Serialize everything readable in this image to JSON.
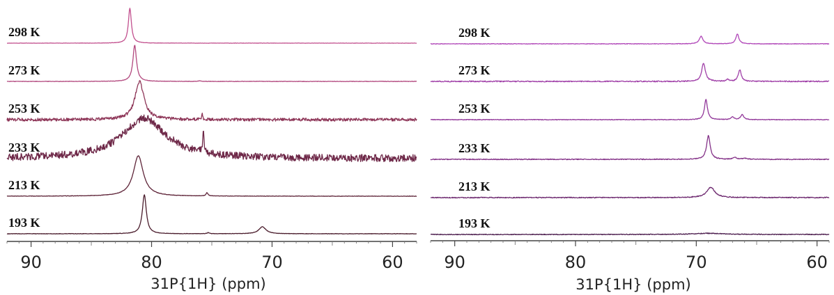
{
  "chart_data": [
    {
      "type": "line",
      "subtype": "stacked NMR spectra",
      "xlabel": "31P{1H} (ppm)",
      "xlim": [
        92,
        58
      ],
      "x_reversed": true,
      "xticks": [
        90,
        80,
        70,
        60
      ],
      "series": [
        {
          "name": "298 K",
          "color": "#c2508e",
          "peaks": [
            {
              "ppm": 81.8,
              "height": 1.0,
              "width": 0.15
            }
          ],
          "noise": 0.004
        },
        {
          "name": "273 K",
          "color": "#b2487e",
          "peaks": [
            {
              "ppm": 81.4,
              "height": 1.0,
              "width": 0.18
            },
            {
              "ppm": 76.0,
              "height": 0.02,
              "width": 0.1
            }
          ],
          "noise": 0.006
        },
        {
          "name": "253 K",
          "color": "#8e3658",
          "peaks": [
            {
              "ppm": 81.0,
              "height": 1.0,
              "width": 0.45
            },
            {
              "ppm": 75.8,
              "height": 0.15,
              "width": 0.05
            }
          ],
          "noise": 0.04
        },
        {
          "name": "233 K",
          "color": "#6e2848",
          "peaks": [
            {
              "ppm": 80.6,
              "height": 1.0,
              "width": 2.2
            },
            {
              "ppm": 75.7,
              "height": 0.55,
              "width": 0.06
            }
          ],
          "noise": 0.09
        },
        {
          "name": "213 K",
          "color": "#5e2438",
          "peaks": [
            {
              "ppm": 81.1,
              "height": 1.0,
              "width": 0.5
            },
            {
              "ppm": 75.4,
              "height": 0.08,
              "width": 0.1
            }
          ],
          "noise": 0.005
        },
        {
          "name": "193 K",
          "color": "#4a1c2c",
          "peaks": [
            {
              "ppm": 80.6,
              "height": 1.0,
              "width": 0.2
            },
            {
              "ppm": 75.3,
              "height": 0.03,
              "width": 0.1
            },
            {
              "ppm": 70.8,
              "height": 0.18,
              "width": 0.35
            }
          ],
          "noise": 0.005
        }
      ]
    },
    {
      "type": "line",
      "subtype": "stacked NMR spectra",
      "xlabel": "31P{1H} (ppm)",
      "xlim": [
        92,
        59
      ],
      "x_reversed": true,
      "xticks": [
        90,
        80,
        70,
        60
      ],
      "series": [
        {
          "name": "298 K",
          "color": "#b046b8",
          "peaks": [
            {
              "ppm": 69.6,
              "height": 1.0,
              "width": 0.18
            },
            {
              "ppm": 66.6,
              "height": 1.3,
              "width": 0.15
            }
          ],
          "noise": 0.035
        },
        {
          "name": "273 K",
          "color": "#a040a8",
          "peaks": [
            {
              "ppm": 69.4,
              "height": 1.2,
              "width": 0.18
            },
            {
              "ppm": 67.4,
              "height": 0.12,
              "width": 0.15
            },
            {
              "ppm": 66.4,
              "height": 0.75,
              "width": 0.15
            }
          ],
          "noise": 0.035
        },
        {
          "name": "253 K",
          "color": "#92389a",
          "peaks": [
            {
              "ppm": 69.2,
              "height": 1.6,
              "width": 0.15
            },
            {
              "ppm": 67.0,
              "height": 0.2,
              "width": 0.15
            },
            {
              "ppm": 66.2,
              "height": 0.4,
              "width": 0.15
            }
          ],
          "noise": 0.025
        },
        {
          "name": "233 K",
          "color": "#843288",
          "peaks": [
            {
              "ppm": 69.0,
              "height": 1.35,
              "width": 0.18
            },
            {
              "ppm": 66.8,
              "height": 0.1,
              "width": 0.15
            },
            {
              "ppm": 66.0,
              "height": 0.05,
              "width": 0.3
            }
          ],
          "noise": 0.025
        },
        {
          "name": "213 K",
          "color": "#6e2a70",
          "peaks": [
            {
              "ppm": 68.8,
              "height": 0.45,
              "width": 0.4
            }
          ],
          "noise": 0.02
        },
        {
          "name": "193 K",
          "color": "#4e2050",
          "peaks": [
            {
              "ppm": 69.0,
              "height": 0.06,
              "width": 1.5
            }
          ],
          "noise": 0.02
        }
      ]
    }
  ]
}
